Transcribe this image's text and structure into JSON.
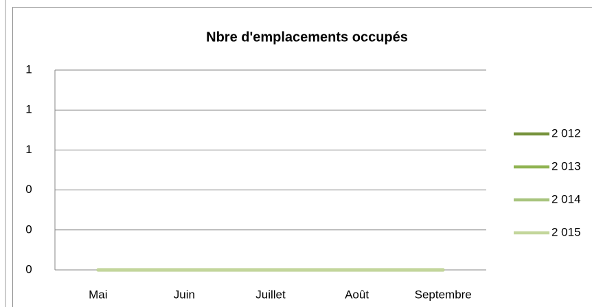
{
  "chart_data": {
    "type": "line",
    "title": "Nbre d'emplacements occupés",
    "categories": [
      "Mai",
      "Juin",
      "Juillet",
      "Août",
      "Septembre"
    ],
    "series": [
      {
        "name": "2 012",
        "color": "#77933c",
        "values": [
          0,
          0,
          0,
          0,
          0
        ]
      },
      {
        "name": "2 013",
        "color": "#8fb350",
        "values": [
          0,
          0,
          0,
          0,
          0
        ]
      },
      {
        "name": "2 014",
        "color": "#a8c47e",
        "values": [
          0,
          0,
          0,
          0,
          0
        ]
      },
      {
        "name": "2 015",
        "color": "#c3d69b",
        "values": [
          0,
          0,
          0,
          0,
          0
        ]
      }
    ],
    "ylim": [
      0,
      1
    ],
    "yticks": [
      0,
      {
        "value": 0.2,
        "label": "0"
      },
      {
        "value": 0.4,
        "label": "0"
      },
      {
        "value": 0.6,
        "label": "1"
      },
      {
        "value": 0.8,
        "label": "1"
      },
      1
    ],
    "grid": true,
    "legend": "right"
  }
}
